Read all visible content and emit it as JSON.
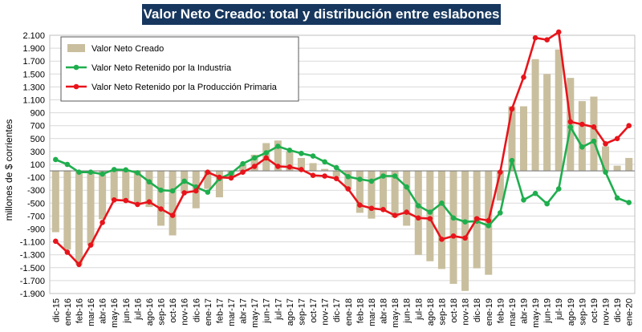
{
  "chart_data": {
    "type": "bar+line",
    "title": "Valor Neto Creado: total y distribución entre eslabones",
    "ylabel": "millones de $ corrientes",
    "ylim": [
      -1900,
      2100
    ],
    "yticks": [
      2100,
      1900,
      1700,
      1500,
      1300,
      1100,
      900,
      700,
      500,
      300,
      100,
      -100,
      -300,
      -500,
      -700,
      -900,
      -1100,
      -1300,
      -1500,
      -1700,
      -1900
    ],
    "ytick_labels": [
      "2.100",
      "1.900",
      "1.700",
      "1.500",
      "1.300",
      "1.100",
      "900",
      "700",
      "500",
      "300",
      "100",
      "-100",
      "-300",
      "-500",
      "-700",
      "-900",
      "-1.100",
      "-1.300",
      "-1.500",
      "-1.700",
      "-1.900"
    ],
    "legend_placement": "top-left",
    "grid": true,
    "categories": [
      "dic-15",
      "ene-16",
      "feb-16",
      "mar-16",
      "abr-16",
      "may-16",
      "jun-16",
      "jul-16",
      "ago-16",
      "sep-16",
      "oct-16",
      "nov-16",
      "dic-16",
      "ene-17",
      "feb-17",
      "mar-17",
      "abr-17",
      "may-17",
      "jun-17",
      "jul-17",
      "ago-17",
      "sep-17",
      "oct-17",
      "nov-17",
      "dic-17",
      "ene-18",
      "feb-18",
      "mar-18",
      "abr-18",
      "may-18",
      "jun-18",
      "jul-18",
      "ago-18",
      "sep-18",
      "oct-18",
      "nov-18",
      "dic-18",
      "ene-19",
      "feb-19",
      "mar-19",
      "abr-19",
      "may-19",
      "jun-19",
      "jul-19",
      "ago-19",
      "sep-19",
      "oct-19",
      "nov-19",
      "dic-19",
      "ene-20"
    ],
    "xtick_labels": [
      "dic-15",
      "ene-16",
      "feb-16",
      "mar-16",
      "abr-16",
      "may-16",
      "jun-16",
      "jul-16",
      "ago-16",
      "sep-16",
      "oct-16",
      "nov-16",
      "dic-16",
      "ene-17",
      "feb-17",
      "mar-17",
      "abr-17",
      "may-17",
      "jun-17",
      "jul-17",
      "ago-17",
      "sep-17",
      "oct-17",
      "nov-17",
      "dic-17",
      "ene-18",
      "feb-18",
      "mar-18",
      "abr-18",
      "may-18",
      "jun-18",
      "jul-18",
      "ago-18",
      "sep-18",
      "oct-18",
      "nov-18",
      "dic-18",
      "ene-19",
      "feb-19",
      "mar-19",
      "abr-19",
      "may-19",
      "jun-19",
      "jul-19",
      "ago-19",
      "sep-19",
      "oct-19",
      "nov-19",
      "dic-19",
      "ene-20"
    ],
    "series": [
      {
        "name": "Valor Neto Creado",
        "kind": "bar",
        "color": "#c9bf9e",
        "values": [
          -950,
          -1220,
          -1450,
          -1150,
          -750,
          -450,
          -450,
          -510,
          -560,
          -850,
          -1000,
          -350,
          -580,
          -280,
          -410,
          -100,
          100,
          250,
          430,
          470,
          300,
          200,
          120,
          30,
          -90,
          -280,
          -650,
          -740,
          -610,
          -720,
          -850,
          -1300,
          -1400,
          -1520,
          -1750,
          -1860,
          -1510,
          -1610,
          -460,
          1000,
          1000,
          1730,
          1500,
          1880,
          1440,
          1080,
          1150,
          380,
          80,
          200
        ]
      },
      {
        "name": "Valor Neto Retenido por la Industria",
        "kind": "line",
        "color": "#1fae4e",
        "values": [
          175,
          100,
          -20,
          -20,
          -50,
          20,
          15,
          -30,
          -170,
          -300,
          -310,
          -160,
          -250,
          -330,
          -120,
          -40,
          110,
          200,
          280,
          380,
          320,
          270,
          230,
          140,
          50,
          -90,
          -130,
          -160,
          -80,
          -80,
          -250,
          -540,
          -640,
          -500,
          -730,
          -790,
          -780,
          -850,
          -650,
          160,
          -450,
          -350,
          -510,
          -280,
          680,
          370,
          460,
          -20,
          -420,
          -490
        ]
      },
      {
        "name": "Valor Neto Retenido por la Producción Primaria",
        "kind": "line",
        "color": "#e8141b",
        "values": [
          -1090,
          -1260,
          -1450,
          -1150,
          -800,
          -450,
          -460,
          -520,
          -480,
          -590,
          -690,
          -340,
          -310,
          -20,
          -100,
          -110,
          -20,
          70,
          200,
          70,
          60,
          20,
          -70,
          -80,
          -120,
          -280,
          -530,
          -580,
          -600,
          -690,
          -640,
          -730,
          -740,
          -1060,
          -1010,
          -1040,
          -740,
          -770,
          -20,
          960,
          1450,
          2060,
          2030,
          2150,
          760,
          720,
          680,
          420,
          500,
          700
        ]
      }
    ]
  }
}
